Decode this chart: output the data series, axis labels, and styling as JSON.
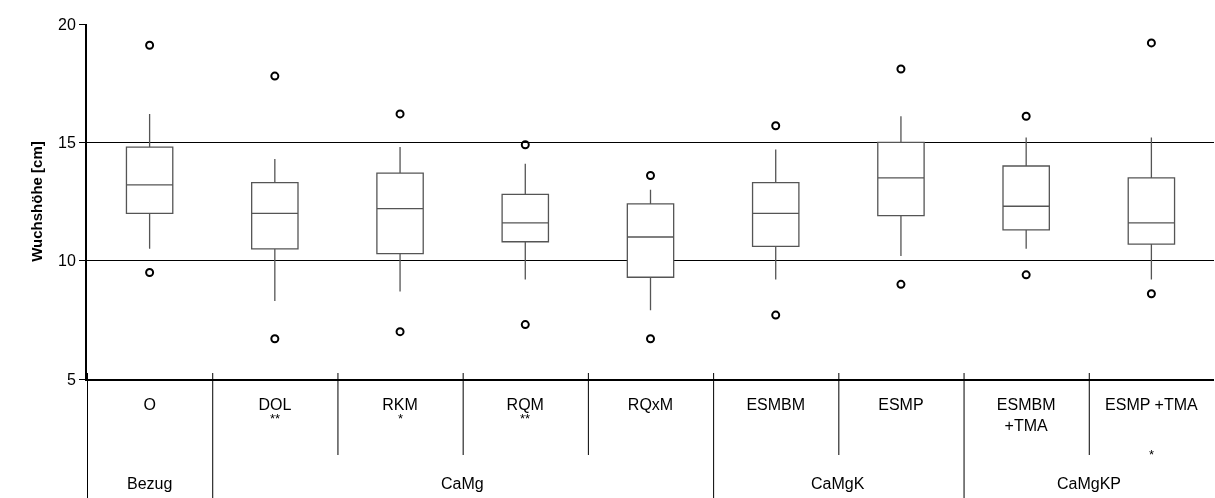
{
  "chart_data": {
    "type": "box",
    "ylabel": "Wuchshöhe [cm]",
    "categories": [
      "O",
      "DOL",
      "RKM",
      "RQM",
      "RQxM",
      "ESMBM",
      "ESMP",
      "ESMBM +TMA",
      "ESMP +TMA"
    ],
    "boxes": [
      {
        "low": 10.5,
        "q1": 12.0,
        "median": 13.2,
        "q3": 14.8,
        "high": 16.2,
        "outliers": [
          19.1,
          9.5
        ]
      },
      {
        "low": 8.3,
        "q1": 10.5,
        "median": 12.0,
        "q3": 13.3,
        "high": 14.3,
        "outliers": [
          17.8,
          6.7
        ]
      },
      {
        "low": 8.7,
        "q1": 10.3,
        "median": 12.2,
        "q3": 13.7,
        "high": 14.8,
        "outliers": [
          16.2,
          7.0
        ]
      },
      {
        "low": 9.2,
        "q1": 10.8,
        "median": 11.6,
        "q3": 12.8,
        "high": 14.1,
        "outliers": [
          14.9,
          7.3
        ]
      },
      {
        "low": 7.9,
        "q1": 9.3,
        "median": 11.0,
        "q3": 12.4,
        "high": 13.0,
        "outliers": [
          13.6,
          6.7
        ]
      },
      {
        "low": 9.2,
        "q1": 10.6,
        "median": 12.0,
        "q3": 13.3,
        "high": 14.7,
        "outliers": [
          15.7,
          7.7
        ]
      },
      {
        "low": 10.2,
        "q1": 11.9,
        "median": 13.5,
        "q3": 15.0,
        "high": 16.1,
        "outliers": [
          18.1,
          9.0
        ]
      },
      {
        "low": 10.5,
        "q1": 11.3,
        "median": 12.3,
        "q3": 14.0,
        "high": 15.2,
        "outliers": [
          16.1,
          9.4
        ]
      },
      {
        "low": 9.2,
        "q1": 10.7,
        "median": 11.6,
        "q3": 13.5,
        "high": 15.2,
        "outliers": [
          19.2,
          8.6
        ]
      }
    ],
    "value_labels": [
      null,
      "**",
      "*",
      "**",
      null,
      null,
      null,
      null,
      "*"
    ],
    "annotations": [
      "Bezug",
      "CaMg",
      "CaMgK",
      "CaMgKP"
    ],
    "ylim": [
      5,
      20
    ],
    "yticks": [
      5,
      10,
      15,
      20
    ],
    "grid": "y",
    "marker": "circle",
    "color": "#555555"
  }
}
